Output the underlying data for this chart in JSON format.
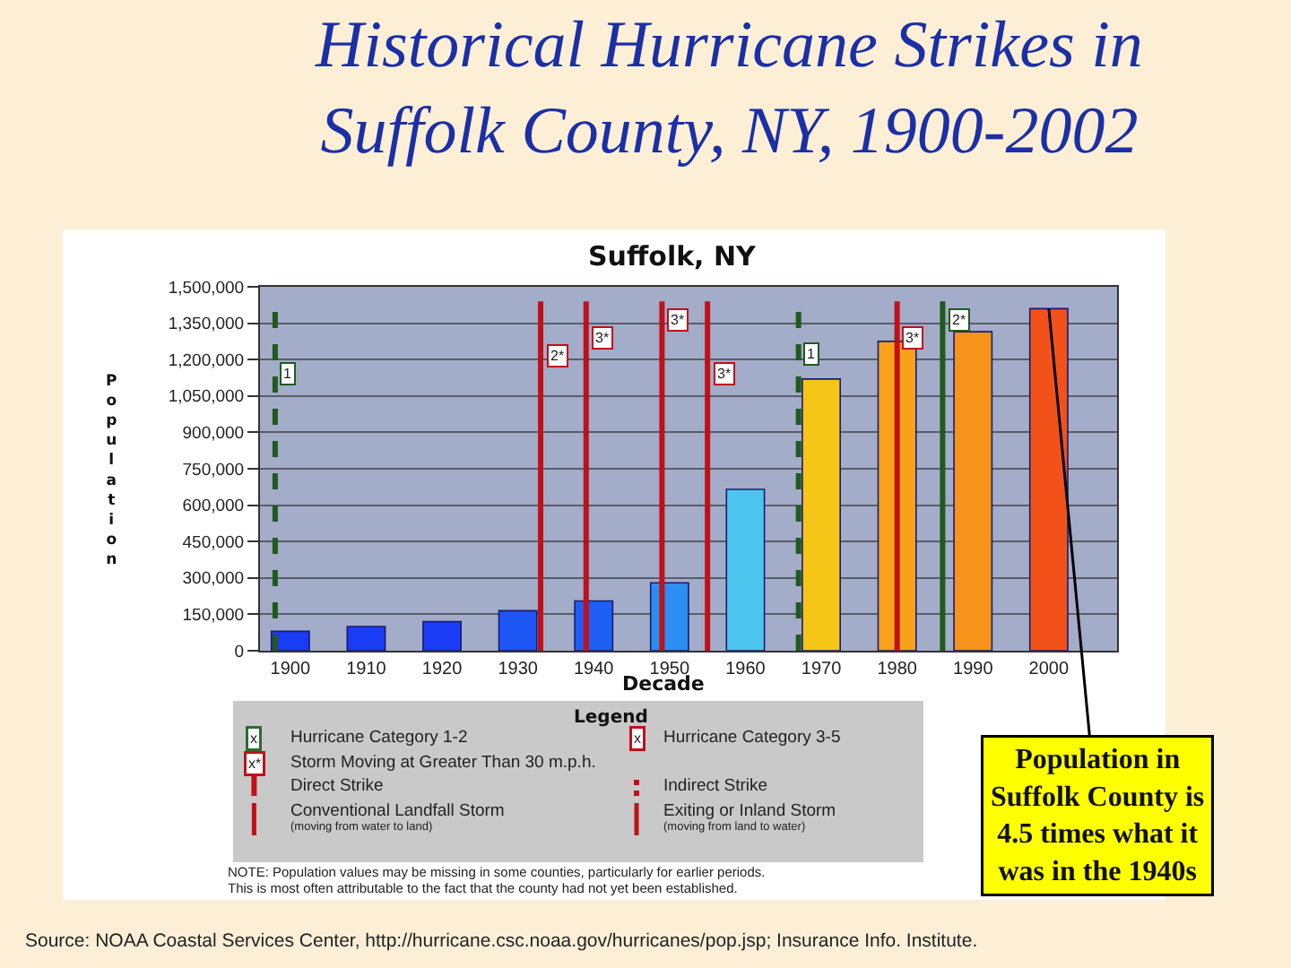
{
  "chart_data": {
    "type": "bar",
    "title": "Historical Hurricane Strikes in Suffolk County, NY, 1900-2002",
    "subtitle": "Suffolk, NY",
    "xlabel": "Decade",
    "ylabel": "Population",
    "legend_title": "Legend",
    "x": [
      1900,
      1910,
      1920,
      1930,
      1940,
      1950,
      1960,
      1970,
      1980,
      1990,
      2000
    ],
    "values": [
      80000,
      100000,
      120000,
      165000,
      205000,
      280000,
      665000,
      1120000,
      1275000,
      1315000,
      1410000
    ],
    "colors": [
      "#1a3cf5",
      "#1a3cf5",
      "#1a3cf5",
      "#1e55f5",
      "#1e60f5",
      "#2a8ef2",
      "#4cc6ee",
      "#f5c518",
      "#f7a21a",
      "#f7921a",
      "#f2521a"
    ],
    "xlim": [
      1896,
      2009
    ],
    "xticks": [
      1900,
      1910,
      1920,
      1930,
      1940,
      1950,
      1960,
      1970,
      1980,
      1990,
      2000
    ],
    "ylim": [
      0,
      1500000
    ],
    "yticks": [
      0,
      {
        "value": 150000,
        "label": "150,000"
      },
      {
        "value": 300000,
        "label": "300,000"
      },
      {
        "value": 450000,
        "label": "450,000"
      },
      {
        "value": 600000,
        "label": "600,000"
      },
      {
        "value": 750000,
        "label": "750,000"
      },
      {
        "value": 900000,
        "label": "900,000"
      },
      {
        "value": 1050000,
        "label": "1,050,000"
      },
      {
        "value": 1200000,
        "label": "1,200,000"
      },
      {
        "value": 1350000,
        "label": "1,350,000"
      },
      {
        "value": 1500000,
        "label": "1,500,000"
      }
    ],
    "grid": "y",
    "ref_lines": [
      {
        "axis": "x",
        "value": 1898,
        "color": "#1f5a1f",
        "line_style": "dashed"
      },
      {
        "axis": "x",
        "value": 1933,
        "color": "#c0101a",
        "line_style": "solid"
      },
      {
        "axis": "x",
        "value": 1939,
        "color": "#c0101a",
        "line_style": "solid"
      },
      {
        "axis": "x",
        "value": 1949,
        "color": "#c0101a",
        "line_style": "solid"
      },
      {
        "axis": "x",
        "value": 1955,
        "color": "#c0101a",
        "line_style": "solid"
      },
      {
        "axis": "x",
        "value": 1967,
        "color": "#1f5a1f",
        "line_style": "dashed"
      },
      {
        "axis": "x",
        "value": 1980,
        "color": "#c0101a",
        "line_style": "solid"
      },
      {
        "axis": "x",
        "value": 1986,
        "color": "#1f5a1f",
        "line_style": "solid"
      }
    ],
    "annotations": [
      {
        "text": "Population in Suffolk County is 4.5 times what it was in the 1940s",
        "x": 2000,
        "y": 1410000
      },
      {
        "text": "1",
        "x": 1898,
        "y": 1145000
      },
      {
        "text": "2*",
        "x": 1933,
        "y": 1215000
      },
      {
        "text": "3*",
        "x": 1939,
        "y": 1290000
      },
      {
        "text": "3*",
        "x": 1949,
        "y": 1360000
      },
      {
        "text": "3*",
        "x": 1955,
        "y": 1145000
      },
      {
        "text": "1",
        "x": 1967,
        "y": 1225000
      },
      {
        "text": "3*",
        "x": 1980,
        "y": 1290000
      },
      {
        "text": "2*",
        "x": 1986,
        "y": 1365000
      },
      "x",
      "Hurricane Category 1-2",
      "x",
      "Hurricane Category 3-5",
      "x*",
      "Storm Moving at Greater Than 30 m.p.h.",
      "Direct Strike",
      "Indirect Strike",
      "Conventional Landfall Storm",
      "(moving from water to land)",
      "Exiting or Inland Storm",
      "(moving from land to water)",
      "NOTE: Population values may be missing in some counties, particularly for earlier periods.",
      "This is most often attributable to the fact that the county had not yet been established.",
      "Source: NOAA Coastal Services Center, http://hurricane.csc.noaa.gov/hurricanes/pop.jsp; Insurance Info. Institute."
    ]
  }
}
